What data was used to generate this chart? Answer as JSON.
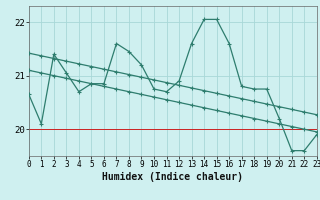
{
  "xlabel": "Humidex (Indice chaleur)",
  "bg_color": "#cff0f0",
  "line_color": "#2e7d6e",
  "xlim": [
    0,
    23
  ],
  "ylim": [
    19.5,
    22.3
  ],
  "yticks": [
    20,
    21,
    22
  ],
  "xticks": [
    0,
    1,
    2,
    3,
    4,
    5,
    6,
    7,
    8,
    9,
    10,
    11,
    12,
    13,
    14,
    15,
    16,
    17,
    18,
    19,
    20,
    21,
    22,
    23
  ],
  "main_x": [
    0,
    1,
    2,
    3,
    4,
    5,
    6,
    7,
    8,
    9,
    10,
    11,
    12,
    13,
    14,
    15,
    16,
    17,
    18,
    19,
    20,
    21,
    22,
    23
  ],
  "main_y": [
    20.65,
    20.1,
    21.4,
    21.05,
    20.7,
    20.85,
    20.85,
    21.6,
    21.45,
    21.2,
    20.75,
    20.7,
    20.9,
    21.6,
    22.05,
    22.05,
    21.6,
    20.8,
    20.75,
    20.75,
    20.2,
    19.6,
    19.6,
    19.9
  ],
  "trend1_x": [
    0,
    1,
    2,
    3,
    4,
    5,
    6,
    7,
    8,
    9,
    10,
    11,
    12,
    13,
    14,
    15,
    16,
    17,
    18,
    19,
    20,
    21,
    22,
    23
  ],
  "trend1_y": [
    21.42,
    21.37,
    21.32,
    21.27,
    21.22,
    21.17,
    21.12,
    21.07,
    21.02,
    20.97,
    20.92,
    20.87,
    20.82,
    20.77,
    20.72,
    20.67,
    20.62,
    20.57,
    20.52,
    20.47,
    20.42,
    20.37,
    20.32,
    20.27
  ],
  "trend2_x": [
    0,
    1,
    2,
    3,
    4,
    5,
    6,
    7,
    8,
    9,
    10,
    11,
    12,
    13,
    14,
    15,
    16,
    17,
    18,
    19,
    20,
    21,
    22,
    23
  ],
  "trend2_y": [
    21.1,
    21.05,
    21.0,
    20.95,
    20.9,
    20.85,
    20.8,
    20.75,
    20.7,
    20.65,
    20.6,
    20.55,
    20.5,
    20.45,
    20.4,
    20.35,
    20.3,
    20.25,
    20.2,
    20.15,
    20.1,
    20.05,
    20.0,
    19.95
  ],
  "red_line_y": 20.0,
  "grid_color": "#a8d8d8",
  "marker": "+"
}
